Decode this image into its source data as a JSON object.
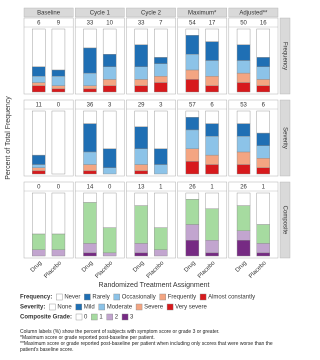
{
  "chart_data": {
    "type": "bar",
    "stacked": true,
    "y_label": "Percent of Total Frequency",
    "x_label": "Randomized Treatment Assignment",
    "ylim": [
      0,
      100
    ],
    "columns": [
      "Baseline",
      "Cycle 1",
      "Cycle 2",
      "Maximum*",
      "Adjusted**"
    ],
    "categories": [
      "Drug",
      "Placebo"
    ],
    "rows": [
      {
        "name": "Frequency",
        "legend_title": "Frequency:",
        "counts": [
          [
            6,
            9
          ],
          [
            33,
            10
          ],
          [
            33,
            7
          ],
          [
            54,
            17
          ],
          [
            50,
            16
          ]
        ],
        "series": [
          {
            "name": "Never",
            "color": "#ffffff",
            "values": [
              [
                60,
                65
              ],
              [
                30,
                40
              ],
              [
                25,
                45
              ],
              [
                10,
                20
              ],
              [
                25,
                45
              ]
            ]
          },
          {
            "name": "Rarely",
            "color": "#1f6fb4",
            "values": [
              [
                15,
                10
              ],
              [
                40,
                20
              ],
              [
                35,
                10
              ],
              [
                30,
                30
              ],
              [
                25,
                15
              ]
            ]
          },
          {
            "name": "Occasionally",
            "color": "#8cc3e8",
            "values": [
              [
                10,
                15
              ],
              [
                20,
                20
              ],
              [
                20,
                20
              ],
              [
                25,
                25
              ],
              [
                20,
                20
              ]
            ]
          },
          {
            "name": "Frequently",
            "color": "#f4a582",
            "values": [
              [
                5,
                5
              ],
              [
                5,
                10
              ],
              [
                10,
                10
              ],
              [
                15,
                15
              ],
              [
                15,
                10
              ]
            ]
          },
          {
            "name": "Almost constantly",
            "color": "#d7191c",
            "values": [
              [
                10,
                5
              ],
              [
                5,
                10
              ],
              [
                10,
                15
              ],
              [
                20,
                10
              ],
              [
                15,
                10
              ]
            ]
          }
        ]
      },
      {
        "name": "Severity",
        "legend_title": "Severity:",
        "counts": [
          [
            11,
            0
          ],
          [
            36,
            3
          ],
          [
            29,
            3
          ],
          [
            57,
            6
          ],
          [
            53,
            6
          ]
        ],
        "series": [
          {
            "name": "None",
            "color": "#ffffff",
            "values": [
              [
                70,
                100
              ],
              [
                20,
                60
              ],
              [
                25,
                60
              ],
              [
                10,
                20
              ],
              [
                20,
                35
              ]
            ]
          },
          {
            "name": "Mild",
            "color": "#1f6fb4",
            "values": [
              [
                15,
                0
              ],
              [
                45,
                30
              ],
              [
                35,
                25
              ],
              [
                20,
                20
              ],
              [
                20,
                20
              ]
            ]
          },
          {
            "name": "Moderate",
            "color": "#8cc3e8",
            "values": [
              [
                5,
                0
              ],
              [
                20,
                10
              ],
              [
                25,
                15
              ],
              [
                30,
                30
              ],
              [
                25,
                20
              ]
            ]
          },
          {
            "name": "Severe",
            "color": "#f4a582",
            "values": [
              [
                5,
                0
              ],
              [
                10,
                0
              ],
              [
                10,
                0
              ],
              [
                20,
                15
              ],
              [
                20,
                15
              ]
            ]
          },
          {
            "name": "Very severe",
            "color": "#d7191c",
            "values": [
              [
                5,
                0
              ],
              [
                5,
                0
              ],
              [
                5,
                0
              ],
              [
                20,
                15
              ],
              [
                15,
                10
              ]
            ]
          }
        ]
      },
      {
        "name": "Composite",
        "legend_title": "Composite Grade:",
        "counts": [
          [
            0,
            0
          ],
          [
            14,
            0
          ],
          [
            13,
            1
          ],
          [
            26,
            1
          ],
          [
            26,
            1
          ]
        ],
        "series": [
          {
            "name": "0",
            "color": "#ffffff",
            "values": [
              [
                65,
                65
              ],
              [
                15,
                55
              ],
              [
                20,
                55
              ],
              [
                10,
                25
              ],
              [
                20,
                50
              ]
            ]
          },
          {
            "name": "1",
            "color": "#a6dba0",
            "values": [
              [
                25,
                25
              ],
              [
                65,
                40
              ],
              [
                60,
                35
              ],
              [
                40,
                50
              ],
              [
                40,
                30
              ]
            ]
          },
          {
            "name": "2",
            "color": "#c2a5cf",
            "values": [
              [
                10,
                10
              ],
              [
                15,
                5
              ],
              [
                15,
                10
              ],
              [
                25,
                20
              ],
              [
                15,
                15
              ]
            ]
          },
          {
            "name": "3",
            "color": "#762a83",
            "values": [
              [
                0,
                0
              ],
              [
                5,
                0
              ],
              [
                5,
                0
              ],
              [
                25,
                5
              ],
              [
                25,
                5
              ]
            ]
          }
        ]
      }
    ],
    "notes": [
      "Column labels (%) show the percent of subjects with symptom score or grade 3 or greater.",
      "*Maximum score or grade reported post-baseline per patient.",
      "**Maximum score or grade reported post-baseline per patient when including only scores that were worse than the patient's baseline score."
    ]
  }
}
